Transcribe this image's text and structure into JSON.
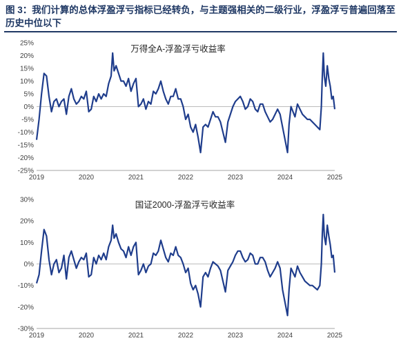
{
  "figure": {
    "title": "图 3：我们计算的总体浮盈浮亏指标已经转负，与主题强相关的二级行业，浮盈浮亏普遍回落至历史中位以下"
  },
  "chart_data": [
    {
      "type": "line",
      "title": "万得全A-浮盈浮亏收益率",
      "xlabel": "",
      "ylabel": "",
      "x_ticks": [
        "2019",
        "2020",
        "2021",
        "2022",
        "2023",
        "2024",
        "2025"
      ],
      "y_ticks": [
        "25%",
        "20%",
        "15%",
        "10%",
        "5%",
        "0%",
        "-5%",
        "-10%",
        "-15%",
        "-20%",
        "-25%"
      ],
      "ylim": [
        -25,
        25
      ],
      "y_unit": "%",
      "xlim": [
        2019.0,
        2025.0
      ],
      "color": "#1f3d8c",
      "series": [
        {
          "x": [
            2019.0,
            2019.05,
            2019.1,
            2019.15,
            2019.2,
            2019.25,
            2019.3,
            2019.35,
            2019.4,
            2019.45,
            2019.5,
            2019.55,
            2019.6,
            2019.65,
            2019.7,
            2019.75,
            2019.8,
            2019.85,
            2019.9,
            2019.95,
            2020.0,
            2020.05,
            2020.1,
            2020.15,
            2020.2,
            2020.25,
            2020.3,
            2020.35,
            2020.4,
            2020.45,
            2020.5,
            2020.53,
            2020.56,
            2020.6,
            2020.65,
            2020.7,
            2020.75,
            2020.8,
            2020.85,
            2020.9,
            2020.95,
            2021.0,
            2021.05,
            2021.1,
            2021.15,
            2021.2,
            2021.25,
            2021.3,
            2021.35,
            2021.4,
            2021.45,
            2021.5,
            2021.55,
            2021.6,
            2021.65,
            2021.7,
            2021.75,
            2021.8,
            2021.85,
            2021.9,
            2021.95,
            2022.0,
            2022.05,
            2022.1,
            2022.15,
            2022.2,
            2022.25,
            2022.3,
            2022.35,
            2022.4,
            2022.45,
            2022.5,
            2022.55,
            2022.6,
            2022.65,
            2022.7,
            2022.75,
            2022.8,
            2022.85,
            2022.9,
            2022.95,
            2023.0,
            2023.05,
            2023.1,
            2023.15,
            2023.2,
            2023.25,
            2023.3,
            2023.35,
            2023.4,
            2023.45,
            2023.5,
            2023.55,
            2023.6,
            2023.65,
            2023.7,
            2023.75,
            2023.8,
            2023.85,
            2023.9,
            2023.95,
            2024.0,
            2024.05,
            2024.08,
            2024.12,
            2024.16,
            2024.2,
            2024.25,
            2024.3,
            2024.35,
            2024.4,
            2024.45,
            2024.5,
            2024.55,
            2024.6,
            2024.65,
            2024.7,
            2024.73,
            2024.75,
            2024.77,
            2024.79,
            2024.82,
            2024.85,
            2024.88,
            2024.91,
            2024.94,
            2024.97,
            2025.0
          ],
          "y": [
            -13,
            -5,
            5,
            13,
            12,
            4,
            -2,
            2,
            3,
            0,
            2,
            3,
            -3,
            4,
            7,
            3,
            1,
            2,
            4,
            3,
            6,
            -2,
            -1,
            4,
            2,
            5,
            3,
            5,
            4,
            9,
            12,
            21,
            14,
            16,
            13,
            10,
            10,
            8,
            11,
            6,
            9,
            11,
            0,
            1,
            3,
            -1,
            2,
            1,
            6,
            5,
            7,
            10,
            6,
            3,
            1,
            4,
            4,
            7,
            3,
            3,
            0,
            -5,
            -3,
            -8,
            -10,
            -7,
            -12,
            -18,
            -8,
            -7,
            -8,
            -5,
            -2,
            -4,
            -4,
            -6,
            -10,
            -14,
            -6,
            -3,
            0,
            2,
            3,
            4,
            2,
            -1,
            0,
            3,
            2,
            -1,
            -2,
            1,
            1,
            -2,
            -4,
            -6,
            -5,
            -3,
            -1,
            -3,
            -8,
            -13,
            -18,
            -7,
            0,
            -2,
            -4,
            1,
            -1,
            -3,
            -4,
            -5,
            -5,
            -6,
            -7,
            -8,
            -9,
            0,
            12,
            21,
            12,
            8,
            16,
            11,
            8,
            3,
            4,
            -1
          ]
        }
      ]
    },
    {
      "type": "line",
      "title": "国证2000-浮盈浮亏收益率",
      "xlabel": "",
      "ylabel": "",
      "x_ticks": [
        "2019",
        "2020",
        "2021",
        "2022",
        "2023",
        "2024",
        "2025"
      ],
      "y_ticks": [
        "30%",
        "20%",
        "10%",
        "0%",
        "-10%",
        "-20%",
        "-30%"
      ],
      "ylim": [
        -30,
        30
      ],
      "y_unit": "%",
      "xlim": [
        2019.0,
        2025.0
      ],
      "color": "#1f3d8c",
      "series": [
        {
          "x": [
            2019.0,
            2019.05,
            2019.1,
            2019.15,
            2019.2,
            2019.25,
            2019.3,
            2019.35,
            2019.4,
            2019.45,
            2019.5,
            2019.55,
            2019.6,
            2019.65,
            2019.7,
            2019.75,
            2019.8,
            2019.85,
            2019.9,
            2019.95,
            2020.0,
            2020.05,
            2020.1,
            2020.15,
            2020.2,
            2020.25,
            2020.3,
            2020.35,
            2020.4,
            2020.45,
            2020.5,
            2020.53,
            2020.56,
            2020.6,
            2020.65,
            2020.7,
            2020.75,
            2020.8,
            2020.85,
            2020.9,
            2020.95,
            2021.0,
            2021.05,
            2021.1,
            2021.15,
            2021.2,
            2021.25,
            2021.3,
            2021.35,
            2021.4,
            2021.45,
            2021.5,
            2021.55,
            2021.6,
            2021.65,
            2021.7,
            2021.75,
            2021.8,
            2021.85,
            2021.9,
            2021.95,
            2022.0,
            2022.05,
            2022.1,
            2022.15,
            2022.2,
            2022.25,
            2022.3,
            2022.35,
            2022.4,
            2022.45,
            2022.5,
            2022.55,
            2022.6,
            2022.65,
            2022.7,
            2022.75,
            2022.8,
            2022.85,
            2022.9,
            2022.95,
            2023.0,
            2023.05,
            2023.1,
            2023.15,
            2023.2,
            2023.25,
            2023.3,
            2023.35,
            2023.4,
            2023.45,
            2023.5,
            2023.55,
            2023.6,
            2023.65,
            2023.7,
            2023.75,
            2023.8,
            2023.85,
            2023.9,
            2023.95,
            2024.0,
            2024.05,
            2024.08,
            2024.12,
            2024.16,
            2024.2,
            2024.25,
            2024.3,
            2024.35,
            2024.4,
            2024.45,
            2024.5,
            2024.55,
            2024.6,
            2024.65,
            2024.7,
            2024.73,
            2024.75,
            2024.77,
            2024.79,
            2024.82,
            2024.85,
            2024.88,
            2024.91,
            2024.94,
            2024.97,
            2025.0
          ],
          "y": [
            -9,
            -5,
            6,
            16,
            13,
            2,
            -5,
            0,
            2,
            -4,
            -2,
            4,
            -7,
            3,
            6,
            2,
            -2,
            1,
            3,
            2,
            5,
            -6,
            -5,
            3,
            0,
            4,
            2,
            5,
            2,
            8,
            11,
            18,
            12,
            14,
            10,
            7,
            6,
            3,
            8,
            4,
            8,
            10,
            -5,
            -3,
            0,
            -4,
            -1,
            0,
            5,
            4,
            6,
            11,
            7,
            3,
            1,
            5,
            4,
            8,
            4,
            3,
            0,
            -4,
            -2,
            -9,
            -12,
            -10,
            -14,
            -20,
            -6,
            -4,
            -6,
            -2,
            1,
            0,
            -1,
            -3,
            -8,
            -13,
            -3,
            -1,
            1,
            4,
            6,
            6,
            3,
            1,
            2,
            5,
            4,
            0,
            0,
            3,
            3,
            1,
            -3,
            -6,
            -4,
            -2,
            1,
            -2,
            -12,
            -18,
            -24,
            -12,
            -2,
            -4,
            -6,
            -1,
            -4,
            -6,
            -8,
            -9,
            -10,
            -10,
            -11,
            -12,
            -10,
            0,
            14,
            23,
            13,
            9,
            18,
            13,
            9,
            3,
            4,
            -4
          ]
        }
      ]
    }
  ]
}
